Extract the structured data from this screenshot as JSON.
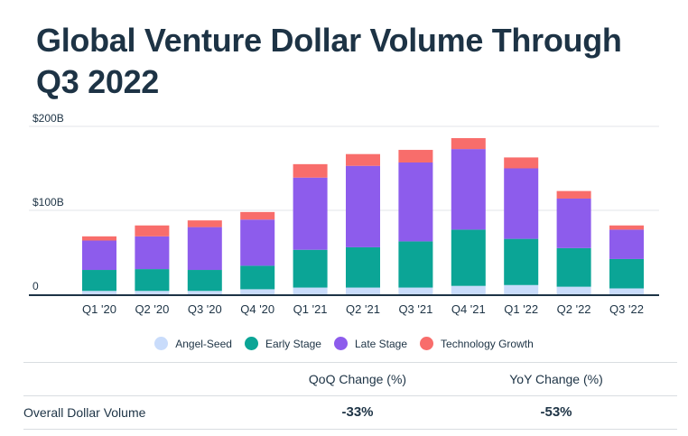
{
  "title": "Global Venture Dollar Volume Through Q3 2022",
  "chart_data": {
    "type": "bar",
    "stacked": true,
    "title": "Global Venture Dollar Volume Through Q3 2022",
    "categories": [
      "Q1 '20",
      "Q2 '20",
      "Q3 '20",
      "Q4 '20",
      "Q1 '21",
      "Q2 '21",
      "Q3 '21",
      "Q4 '21",
      "Q1 '22",
      "Q2 '22",
      "Q3 '22"
    ],
    "series": [
      {
        "name": "Angel-Seed",
        "color": "#c9dcfb",
        "values": [
          4,
          4,
          4,
          6,
          8,
          8,
          8,
          10,
          11,
          9,
          7
        ]
      },
      {
        "name": "Early Stage",
        "color": "#0ba596",
        "values": [
          25,
          26,
          25,
          28,
          45,
          48,
          55,
          67,
          55,
          46,
          35
        ]
      },
      {
        "name": "Late Stage",
        "color": "#8d5cec",
        "values": [
          35,
          39,
          51,
          55,
          86,
          97,
          94,
          96,
          84,
          59,
          35
        ]
      },
      {
        "name": "Technology Growth",
        "color": "#f86d6b",
        "values": [
          5,
          13,
          8,
          9,
          16,
          14,
          15,
          13,
          13,
          9,
          5
        ]
      }
    ],
    "ylim": [
      0,
      200
    ],
    "y_ticks": [
      {
        "value": 0,
        "label": "0"
      },
      {
        "value": 100,
        "label": "$100B"
      },
      {
        "value": 200,
        "label": "$200B"
      }
    ],
    "grid": true,
    "legend_position": "bottom"
  },
  "table": {
    "headers": [
      "",
      "QoQ Change (%)",
      "YoY Change (%)"
    ],
    "rows": [
      {
        "label": "Overall Dollar Volume",
        "qoq": "-33%",
        "yoy": "-53%"
      }
    ]
  }
}
